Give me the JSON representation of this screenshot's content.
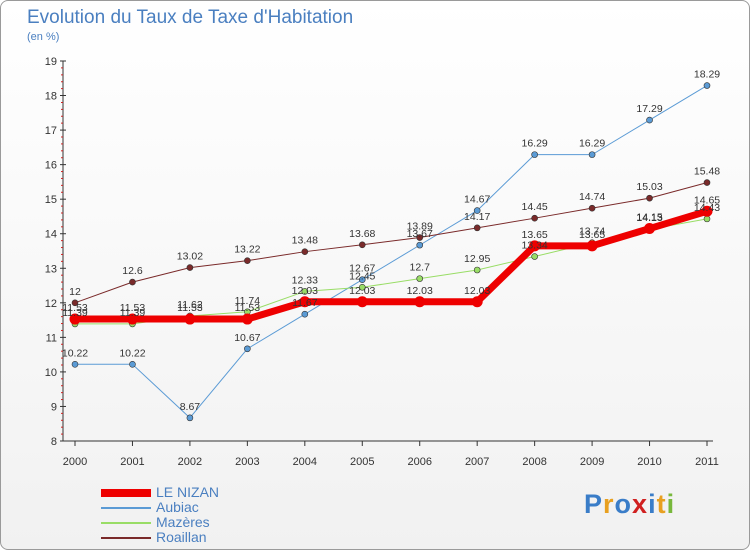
{
  "title": "Evolution du Taux de Taxe d'Habitation",
  "subtitle": "(en %)",
  "logo": {
    "text": "Proxiti",
    "letters": [
      "P",
      "r",
      "o",
      "x",
      "i",
      "t",
      "i"
    ],
    "colors": [
      "#3a7dc8",
      "#e8a020",
      "#3a7dc8",
      "#d02020",
      "#3a7dc8",
      "#e8a020",
      "#78b83c"
    ]
  },
  "chart_data": {
    "type": "line",
    "title": "Evolution du Taux de Taxe d'Habitation",
    "ylabel": "(en %)",
    "xlabel": "",
    "x": [
      "2000",
      "2001",
      "2002",
      "2003",
      "2004",
      "2005",
      "2006",
      "2007",
      "2008",
      "2009",
      "2010",
      "2011"
    ],
    "ylim": [
      8,
      19
    ],
    "yticks": [
      "8",
      "9",
      "10",
      "11",
      "12",
      "13",
      "14",
      "15",
      "16",
      "17",
      "18",
      "19"
    ],
    "grid": false,
    "legend": "bottom-left",
    "series": [
      {
        "name": "Aubiac",
        "color": "#5b9bd5",
        "width": 1,
        "values": [
          10.22,
          10.22,
          8.67,
          10.67,
          11.67,
          12.67,
          13.67,
          14.67,
          16.29,
          16.29,
          17.29,
          18.29
        ],
        "labels": [
          "10.22",
          "10.22",
          "8.67",
          "10.67",
          "11.67",
          "12.67",
          "13.67",
          "14.67",
          "16.29",
          "16.29",
          "17.29",
          "18.29"
        ]
      },
      {
        "name": "Mazères",
        "color": "#99dd66",
        "width": 1,
        "values": [
          11.39,
          11.39,
          11.62,
          11.74,
          12.33,
          12.45,
          12.7,
          12.95,
          13.34,
          13.74,
          14.13,
          14.43
        ],
        "labels": [
          "11.39",
          "11.39",
          "11.62",
          "11.74",
          "12.33",
          "12.45",
          "12.7",
          "12.95",
          "13.34",
          "13.74",
          "14.13",
          "14.43"
        ]
      },
      {
        "name": "Roaillan",
        "color": "#7a2a2a",
        "width": 1,
        "values": [
          12,
          12.6,
          13.02,
          13.22,
          13.48,
          13.68,
          13.89,
          14.17,
          14.45,
          14.74,
          15.03,
          15.48
        ],
        "labels": [
          "12",
          "12.6",
          "13.02",
          "13.22",
          "13.48",
          "13.68",
          "13.89",
          "14.17",
          "14.45",
          "14.74",
          "15.03",
          "15.48"
        ]
      },
      {
        "name": "LE NIZAN",
        "color": "#ee0000",
        "width": 7,
        "values": [
          11.53,
          11.53,
          11.53,
          11.53,
          12.03,
          12.03,
          12.03,
          12.03,
          13.65,
          13.65,
          14.15,
          14.65
        ],
        "labels": [
          "11.53",
          "11.53",
          "11.53",
          "11.53",
          "12.03",
          "12.03",
          "12.03",
          "12.03",
          "13.65",
          "13.65",
          "14.15",
          "14.65"
        ]
      }
    ],
    "legend_entries": [
      {
        "name": "LE NIZAN",
        "color": "#ee0000",
        "width": 8
      },
      {
        "name": "Aubiac",
        "color": "#5b9bd5",
        "width": 2
      },
      {
        "name": "Mazères",
        "color": "#99dd66",
        "width": 2
      },
      {
        "name": "Roaillan",
        "color": "#7a2a2a",
        "width": 2
      }
    ]
  }
}
